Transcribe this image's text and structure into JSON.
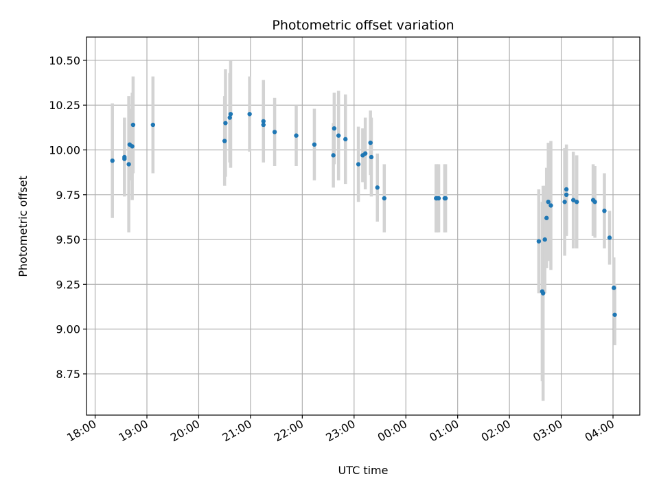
{
  "chart_data": {
    "type": "scatter",
    "title": "Photometric offset variation",
    "xlabel": "UTC time",
    "ylabel": "Photometric offset",
    "grid": true,
    "xlim": [
      "17:50",
      "04:31"
    ],
    "ylim": [
      8.52,
      10.63
    ],
    "x_ticks": [
      "18:00",
      "19:00",
      "20:00",
      "21:00",
      "22:00",
      "23:00",
      "00:00",
      "01:00",
      "02:00",
      "03:00",
      "04:00"
    ],
    "y_ticks": [
      "8.75",
      "9.00",
      "9.25",
      "9.50",
      "9.75",
      "10.00",
      "10.25",
      "10.50"
    ],
    "colors": {
      "point": "#1f77b4",
      "errorbar": "#d3d3d3",
      "grid": "#b0b0b0"
    },
    "series": [
      {
        "x": [
          "18:20",
          "18:34",
          "18:34",
          "18:39",
          "18:40",
          "18:43",
          "18:44",
          "19:07",
          "20:30",
          "20:31",
          "20:36",
          "20:37",
          "20:59",
          "21:15",
          "21:15",
          "21:28",
          "21:53",
          "22:14",
          "22:36",
          "22:37",
          "22:42",
          "22:50",
          "23:05",
          "23:10",
          "23:13",
          "23:19",
          "23:20",
          "23:27",
          "23:35",
          "00:35",
          "00:36",
          "00:38",
          "00:45",
          "00:46",
          "02:34",
          "02:38",
          "02:39",
          "02:41",
          "02:43",
          "02:45",
          "02:48",
          "03:04",
          "03:06",
          "03:06",
          "03:14",
          "03:18",
          "03:37",
          "03:39",
          "03:50",
          "03:56",
          "04:01",
          "04:02"
        ],
        "y": [
          9.94,
          9.96,
          9.95,
          9.92,
          10.03,
          10.02,
          10.14,
          10.14,
          10.05,
          10.15,
          10.18,
          10.2,
          10.2,
          10.16,
          10.14,
          10.1,
          10.08,
          10.03,
          9.97,
          10.12,
          10.08,
          10.06,
          9.92,
          9.97,
          9.98,
          10.04,
          9.96,
          9.79,
          9.73,
          9.73,
          9.73,
          9.73,
          9.73,
          9.73,
          9.49,
          9.21,
          9.2,
          9.5,
          9.62,
          9.71,
          9.69,
          9.71,
          9.78,
          9.75,
          9.72,
          9.71,
          9.72,
          9.71,
          9.66,
          9.51,
          9.23,
          9.08
        ],
        "yerr": [
          0.32,
          0.22,
          0.2,
          0.38,
          0.2,
          0.3,
          0.27,
          0.27,
          0.25,
          0.3,
          0.25,
          0.3,
          0.21,
          0.23,
          0.2,
          0.19,
          0.17,
          0.2,
          0.18,
          0.2,
          0.25,
          0.25,
          0.21,
          0.15,
          0.2,
          0.18,
          0.22,
          0.19,
          0.19,
          0.19,
          0.19,
          0.19,
          0.19,
          0.19,
          0.29,
          0.5,
          0.6,
          0.3,
          0.28,
          0.33,
          0.36,
          0.3,
          0.25,
          0.23,
          0.27,
          0.26,
          0.2,
          0.2,
          0.21,
          0.15,
          0.17,
          0.17
        ]
      }
    ]
  }
}
